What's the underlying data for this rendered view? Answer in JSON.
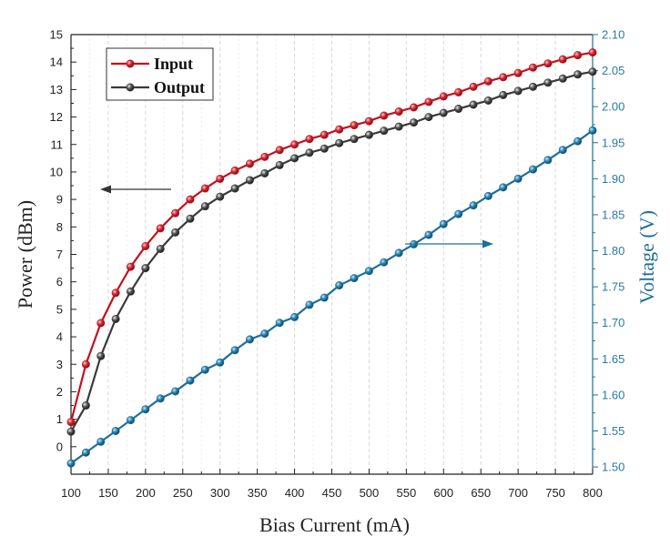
{
  "chart_data": {
    "type": "line",
    "xlabel": "Bias Current (mA)",
    "ylabel": "Power (dBm)",
    "y2label": "Voltage (V)",
    "xlim": [
      100,
      800
    ],
    "ylim": [
      -1,
      15
    ],
    "y2lim": [
      1.49,
      2.1
    ],
    "x_ticks": [
      100,
      150,
      200,
      250,
      300,
      350,
      400,
      450,
      500,
      550,
      600,
      650,
      700,
      750,
      800
    ],
    "y_ticks": [
      0,
      1,
      2,
      3,
      4,
      5,
      6,
      7,
      8,
      9,
      10,
      11,
      12,
      13,
      14,
      15
    ],
    "y2_ticks": [
      "1.50",
      "1.55",
      "1.60",
      "1.65",
      "1.70",
      "1.75",
      "1.80",
      "1.85",
      "1.90",
      "1.95",
      "2.00",
      "2.05",
      "2.10"
    ],
    "grid": "vertical-dashed",
    "legend_position": "top-left",
    "x": [
      100,
      120,
      140,
      160,
      180,
      200,
      220,
      240,
      260,
      280,
      300,
      320,
      340,
      360,
      380,
      400,
      420,
      440,
      460,
      480,
      500,
      520,
      540,
      560,
      580,
      600,
      620,
      640,
      660,
      680,
      700,
      720,
      740,
      760,
      780,
      800
    ],
    "series": [
      {
        "name": "Input",
        "axis": "left",
        "color": "#c0121e",
        "values": [
          0.9,
          3.0,
          4.5,
          5.6,
          6.55,
          7.3,
          7.95,
          8.5,
          9.0,
          9.4,
          9.75,
          10.05,
          10.3,
          10.55,
          10.8,
          11.0,
          11.2,
          11.35,
          11.55,
          11.7,
          11.85,
          12.05,
          12.2,
          12.35,
          12.55,
          12.75,
          12.9,
          13.1,
          13.3,
          13.45,
          13.6,
          13.8,
          13.95,
          14.1,
          14.25,
          14.35
        ]
      },
      {
        "name": "Output",
        "axis": "left",
        "color": "#3a3a3a",
        "values": [
          0.55,
          1.5,
          3.3,
          4.65,
          5.65,
          6.5,
          7.2,
          7.8,
          8.3,
          8.75,
          9.1,
          9.4,
          9.7,
          9.95,
          10.25,
          10.5,
          10.7,
          10.85,
          11.05,
          11.2,
          11.35,
          11.5,
          11.65,
          11.8,
          12.0,
          12.15,
          12.3,
          12.45,
          12.6,
          12.8,
          12.95,
          13.1,
          13.25,
          13.4,
          13.55,
          13.65
        ]
      },
      {
        "name": "",
        "axis": "right",
        "color": "#1f6f9a",
        "values": [
          1.505,
          1.52,
          1.535,
          1.55,
          1.565,
          1.58,
          1.595,
          1.605,
          1.62,
          1.635,
          1.645,
          1.662,
          1.677,
          1.685,
          1.7,
          1.708,
          1.725,
          1.735,
          1.752,
          1.762,
          1.772,
          1.784,
          1.797,
          1.809,
          1.822,
          1.837,
          1.851,
          1.863,
          1.876,
          1.888,
          1.9,
          1.913,
          1.926,
          1.94,
          1.952,
          1.967
        ]
      }
    ],
    "annotations": [
      {
        "type": "arrow",
        "direction": "left",
        "meaning": "points to left axis"
      },
      {
        "type": "arrow",
        "direction": "right",
        "meaning": "points to right axis"
      }
    ]
  }
}
